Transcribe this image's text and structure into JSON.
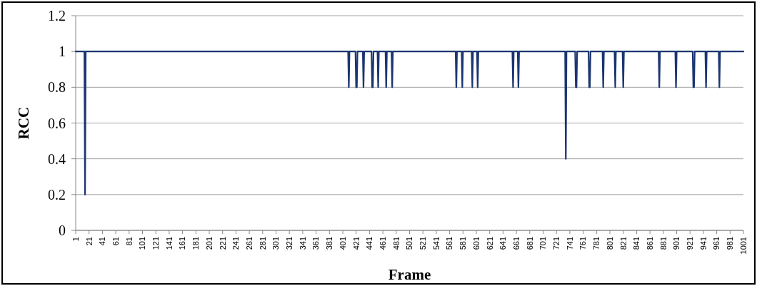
{
  "chart_data": {
    "type": "line",
    "xlabel": "Frame",
    "ylabel": "RCC",
    "xlim": [
      1,
      1001
    ],
    "xticks": [
      1,
      21,
      41,
      61,
      81,
      101,
      121,
      141,
      161,
      181,
      201,
      221,
      241,
      261,
      281,
      301,
      321,
      341,
      361,
      381,
      401,
      421,
      441,
      461,
      481,
      501,
      521,
      541,
      561,
      581,
      601,
      621,
      641,
      661,
      681,
      701,
      721,
      741,
      761,
      781,
      801,
      821,
      841,
      861,
      881,
      901,
      921,
      941,
      961,
      981,
      1001
    ],
    "ylim": [
      0,
      1.2
    ],
    "yticks": [
      0,
      0.2,
      0.4,
      0.6,
      0.8,
      1,
      1.2
    ],
    "grid": "y",
    "marker": "none",
    "line_style": "solid",
    "series": [
      {
        "color": "#1b3570",
        "x": [
          1,
          14,
          15,
          16,
          409,
          410,
          411,
          420,
          421,
          422,
          423,
          431,
          432,
          433,
          444,
          445,
          446,
          447,
          453,
          454,
          455,
          465,
          466,
          467,
          474,
          475,
          476,
          570,
          571,
          572,
          579,
          580,
          581,
          594,
          595,
          596,
          602,
          603,
          604,
          655,
          656,
          657,
          663,
          664,
          665,
          734,
          735,
          736,
          749,
          750,
          751,
          752,
          769,
          770,
          771,
          772,
          790,
          791,
          792,
          808,
          809,
          810,
          820,
          821,
          822,
          874,
          875,
          876,
          899,
          900,
          901,
          925,
          926,
          927,
          928,
          944,
          945,
          946,
          964,
          965,
          966,
          1001
        ],
        "values": [
          1,
          1,
          0.2,
          1,
          1,
          0.8,
          1,
          1,
          0.8,
          0.8,
          1,
          1,
          0.8,
          1,
          1,
          0.8,
          0.8,
          1,
          1,
          0.8,
          1,
          1,
          0.8,
          1,
          1,
          0.8,
          1,
          1,
          0.8,
          1,
          1,
          0.8,
          1,
          1,
          0.8,
          1,
          1,
          0.8,
          1,
          1,
          0.8,
          1,
          1,
          0.8,
          1,
          1,
          0.4,
          1,
          1,
          0.8,
          0.8,
          1,
          1,
          0.8,
          0.8,
          1,
          1,
          0.8,
          1,
          1,
          0.8,
          1,
          1,
          0.8,
          1,
          1,
          0.8,
          1,
          1,
          0.8,
          1,
          1,
          0.8,
          0.8,
          1,
          1,
          0.8,
          1,
          1,
          0.8,
          1,
          1
        ]
      }
    ]
  }
}
